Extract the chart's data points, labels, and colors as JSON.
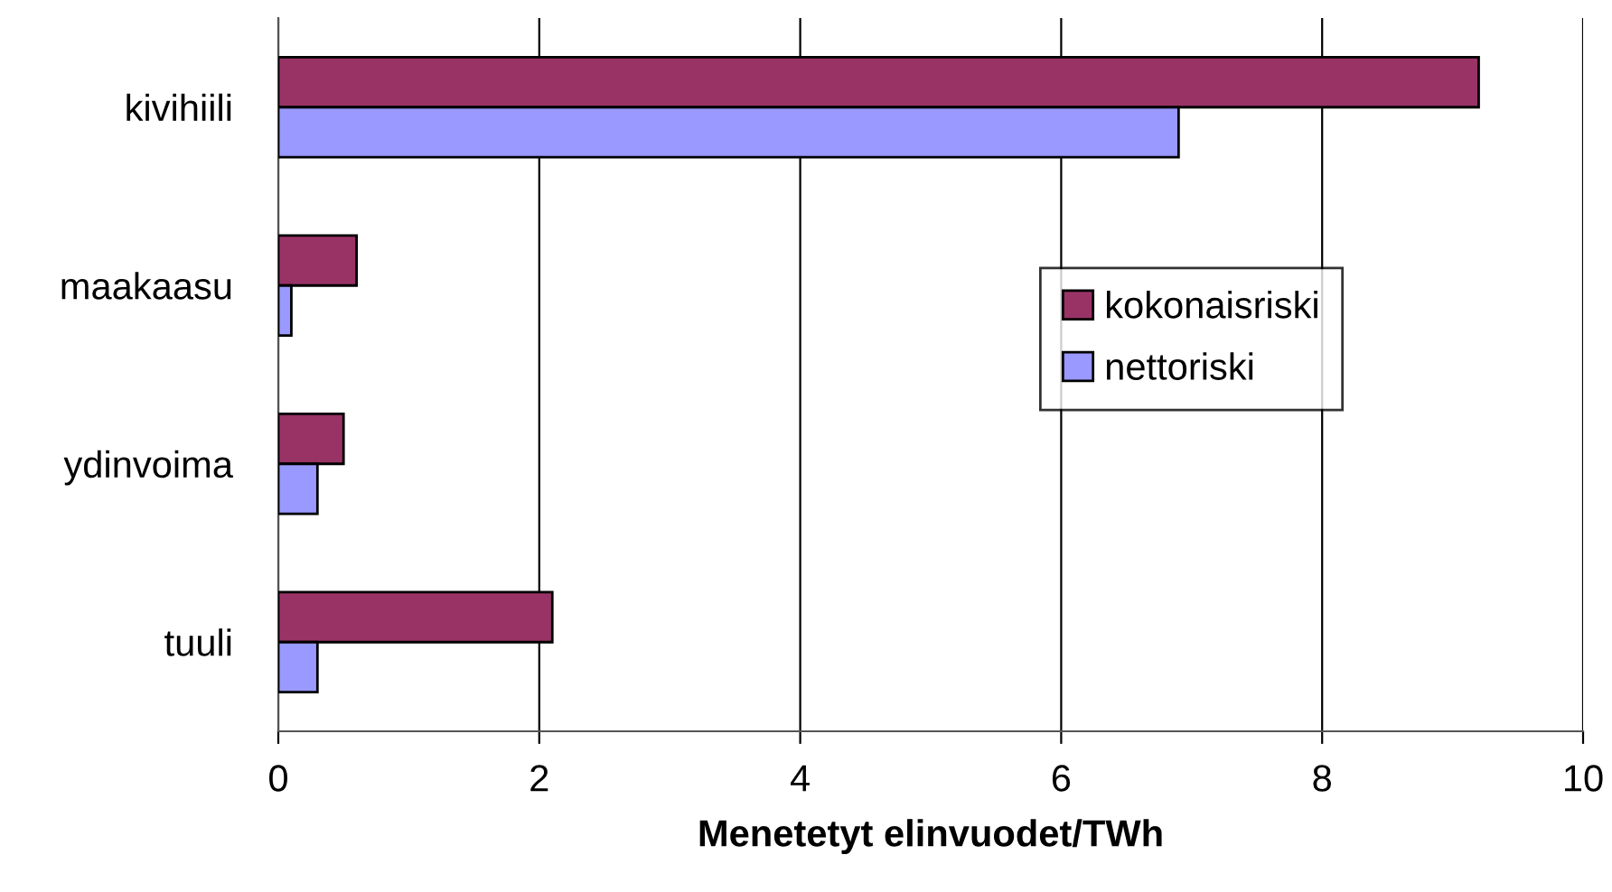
{
  "chart_data": {
    "type": "bar",
    "orientation": "horizontal",
    "xlabel": "Menetetyt elinvuodet/TWh",
    "categories": [
      "kivihiili",
      "maakaasu",
      "ydinvoima",
      "tuuli"
    ],
    "series": [
      {
        "name": "kokonaisriski",
        "color": "#993366",
        "values": [
          9.2,
          0.6,
          0.5,
          2.1
        ]
      },
      {
        "name": "nettoriski",
        "color": "#9999ff",
        "values": [
          6.9,
          0.1,
          0.3,
          0.3
        ]
      }
    ],
    "xlim": [
      0,
      10
    ],
    "xticks": [
      0,
      2,
      4,
      6,
      8,
      10
    ],
    "grid": "x",
    "legend": "right"
  }
}
